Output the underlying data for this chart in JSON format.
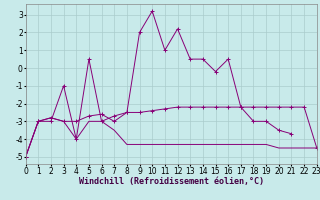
{
  "line1_x": [
    0,
    1,
    2,
    3,
    4,
    5,
    6,
    7,
    8,
    9,
    10,
    11,
    12,
    13,
    14,
    15,
    16,
    17,
    18,
    19,
    20,
    21
  ],
  "line1_y": [
    -5.0,
    -3.0,
    -3.0,
    -1.0,
    -4.0,
    0.5,
    -3.0,
    -2.7,
    -2.5,
    2.0,
    3.2,
    1.0,
    2.2,
    0.5,
    0.5,
    -0.2,
    0.5,
    -2.2,
    -3.0,
    -3.0,
    -3.5,
    -3.7
  ],
  "line2_x": [
    0,
    1,
    2,
    3,
    4,
    5,
    6,
    7,
    8,
    9,
    10,
    11,
    12,
    13,
    14,
    15,
    16,
    17,
    18,
    19,
    20,
    21,
    22,
    23
  ],
  "line2_y": [
    -5.0,
    -3.0,
    -2.8,
    -3.0,
    -3.0,
    -2.7,
    -2.6,
    -3.0,
    -2.5,
    -2.5,
    -2.4,
    -2.3,
    -2.2,
    -2.2,
    -2.2,
    -2.2,
    -2.2,
    -2.2,
    -2.2,
    -2.2,
    -2.2,
    -2.2,
    -2.2,
    -4.5
  ],
  "line3_x": [
    0,
    1,
    2,
    3,
    4,
    5,
    6,
    7,
    8,
    9,
    10,
    11,
    12,
    13,
    14,
    15,
    16,
    17,
    18,
    19,
    20,
    21,
    22,
    23
  ],
  "line3_y": [
    -5.0,
    -3.0,
    -2.8,
    -3.0,
    -4.0,
    -3.0,
    -3.0,
    -3.5,
    -4.3,
    -4.3,
    -4.3,
    -4.3,
    -4.3,
    -4.3,
    -4.3,
    -4.3,
    -4.3,
    -4.3,
    -4.3,
    -4.3,
    -4.5,
    -4.5,
    -4.5,
    -4.5
  ],
  "line_color": "#880077",
  "bg_color": "#c8eaea",
  "grid_color": "#aacccc",
  "xlabel": "Windchill (Refroidissement éolien,°C)",
  "xlim": [
    0,
    23
  ],
  "ylim": [
    -5.4,
    3.6
  ],
  "yticks": [
    -5,
    -4,
    -3,
    -2,
    -1,
    0,
    1,
    2,
    3
  ],
  "xticks": [
    0,
    1,
    2,
    3,
    4,
    5,
    6,
    7,
    8,
    9,
    10,
    11,
    12,
    13,
    14,
    15,
    16,
    17,
    18,
    19,
    20,
    21,
    22,
    23
  ],
  "tick_fontsize": 5.5,
  "xlabel_fontsize": 6.0
}
